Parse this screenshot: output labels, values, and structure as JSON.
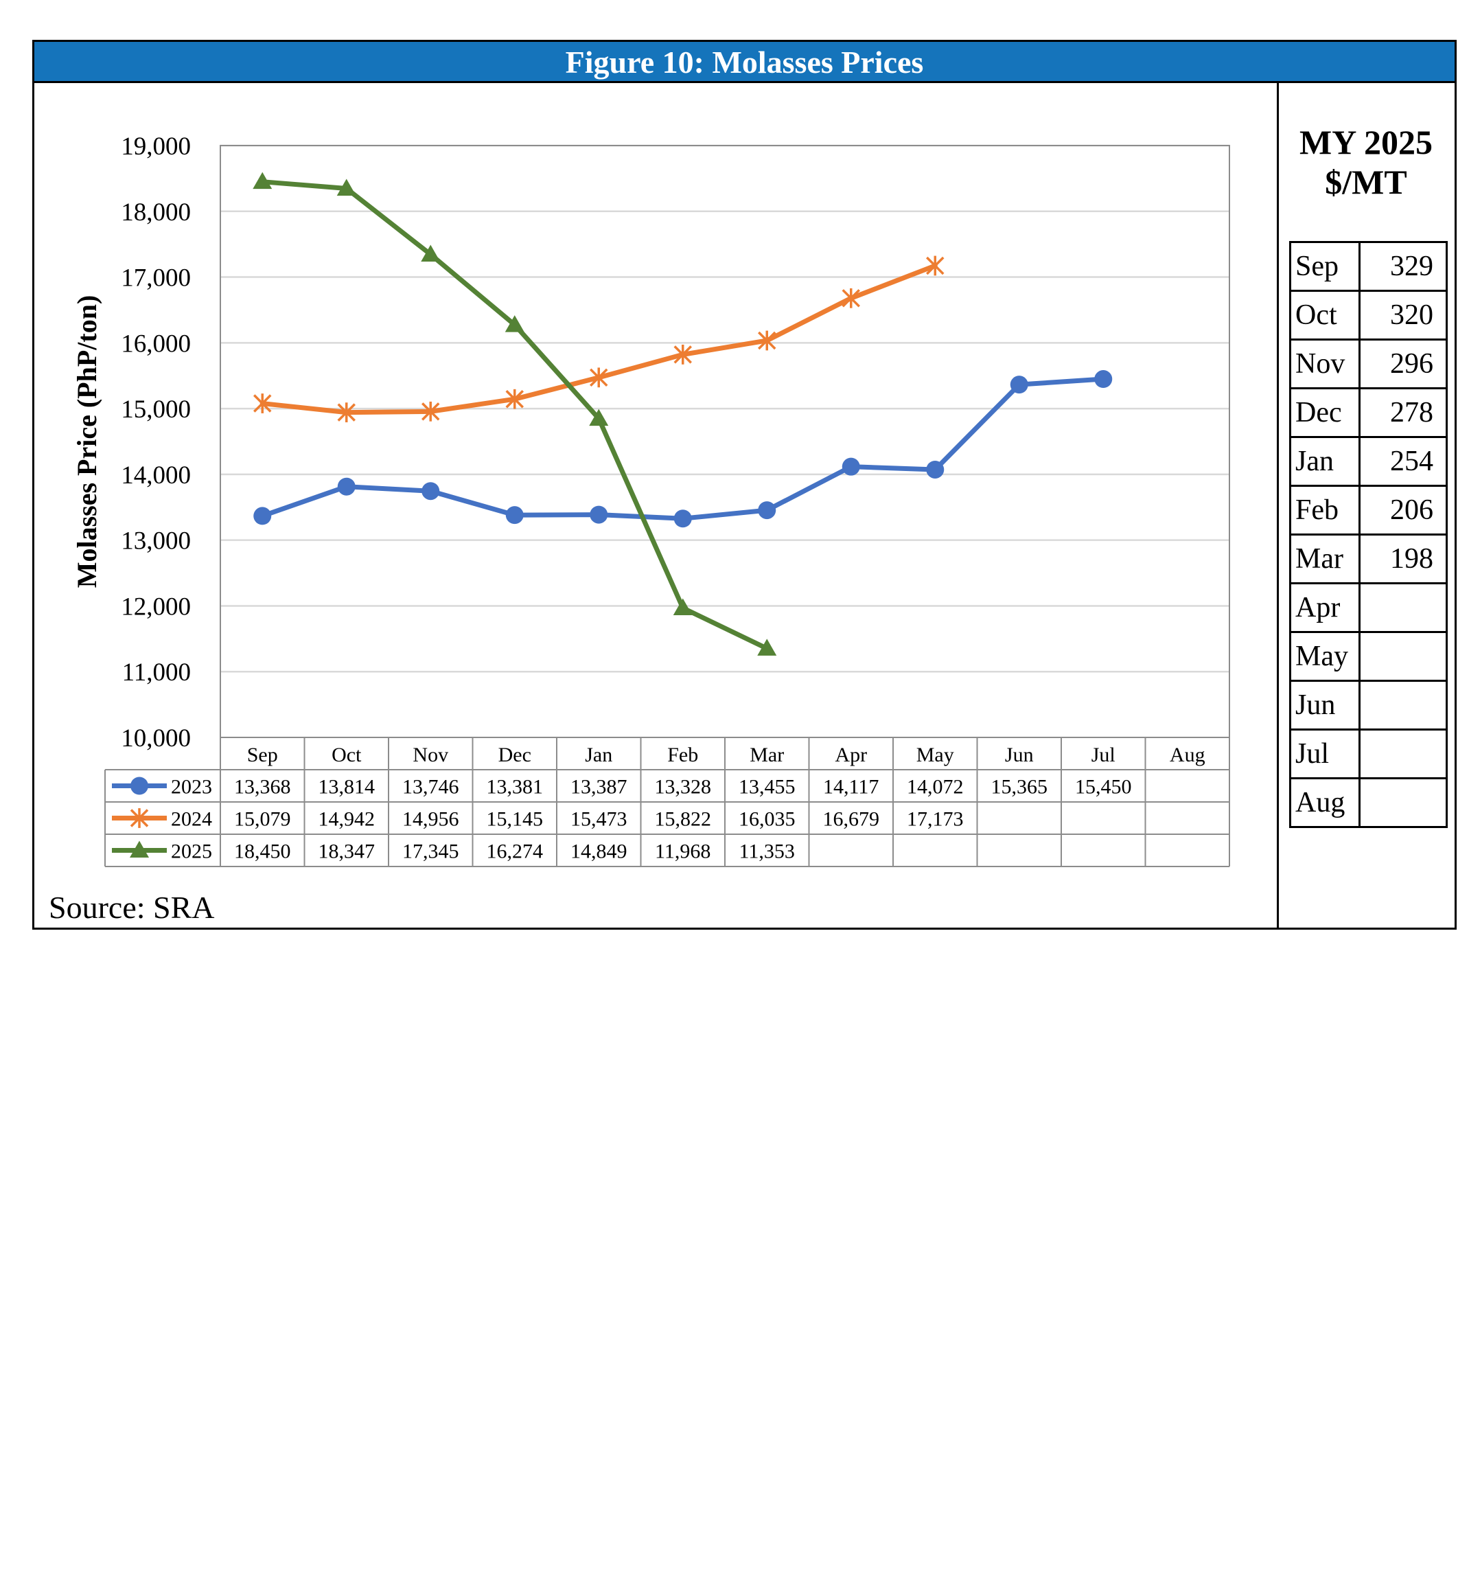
{
  "figure_title": "Figure 10: Molasses Prices",
  "source": "Source: SRA",
  "side_table": {
    "title_line1": "MY 2025",
    "title_line2": "$/MT",
    "rows": [
      {
        "month": "Sep",
        "value": "329"
      },
      {
        "month": "Oct",
        "value": "320"
      },
      {
        "month": "Nov",
        "value": "296"
      },
      {
        "month": "Dec",
        "value": "278"
      },
      {
        "month": "Jan",
        "value": "254"
      },
      {
        "month": "Feb",
        "value": "206"
      },
      {
        "month": "Mar",
        "value": "198"
      },
      {
        "month": "Apr",
        "value": ""
      },
      {
        "month": "May",
        "value": ""
      },
      {
        "month": "Jun",
        "value": ""
      },
      {
        "month": "Jul",
        "value": ""
      },
      {
        "month": "Aug",
        "value": ""
      }
    ]
  },
  "chart_data": {
    "type": "line",
    "title": "Figure 10: Molasses Prices",
    "xlabel": "",
    "ylabel": "Molasses Price (PhP/ton)",
    "categories": [
      "Sep",
      "Oct",
      "Nov",
      "Dec",
      "Jan",
      "Feb",
      "Mar",
      "Apr",
      "May",
      "Jun",
      "Jul",
      "Aug"
    ],
    "ylim": [
      10000,
      19000
    ],
    "yticks": [
      10000,
      11000,
      12000,
      13000,
      14000,
      15000,
      16000,
      17000,
      18000,
      19000
    ],
    "ytick_labels": [
      "10,000",
      "11,000",
      "12,000",
      "13,000",
      "14,000",
      "15,000",
      "16,000",
      "17,000",
      "18,000",
      "19,000"
    ],
    "grid": "horizontal",
    "legend": "data-table",
    "series": [
      {
        "name": "2023",
        "color": "#4472c4",
        "marker": "circle",
        "values": [
          13368,
          13814,
          13746,
          13381,
          13387,
          13328,
          13455,
          14117,
          14072,
          15365,
          15450,
          null
        ],
        "labels": [
          "13,368",
          "13,814",
          "13,746",
          "13,381",
          "13,387",
          "13,328",
          "13,455",
          "14,117",
          "14,072",
          "15,365",
          "15,450",
          ""
        ]
      },
      {
        "name": "2024",
        "color": "#ed7d31",
        "marker": "star",
        "values": [
          15079,
          14942,
          14956,
          15145,
          15473,
          15822,
          16035,
          16679,
          17173,
          null,
          null,
          null
        ],
        "labels": [
          "15,079",
          "14,942",
          "14,956",
          "15,145",
          "15,473",
          "15,822",
          "16,035",
          "16,679",
          "17,173",
          "",
          "",
          ""
        ]
      },
      {
        "name": "2025",
        "color": "#548235",
        "marker": "triangle",
        "values": [
          18450,
          18347,
          17345,
          16274,
          14849,
          11968,
          11353,
          null,
          null,
          null,
          null,
          null
        ],
        "labels": [
          "18,450",
          "18,347",
          "17,345",
          "16,274",
          "14,849",
          "11,968",
          "11,353",
          "",
          "",
          "",
          "",
          ""
        ]
      }
    ]
  }
}
